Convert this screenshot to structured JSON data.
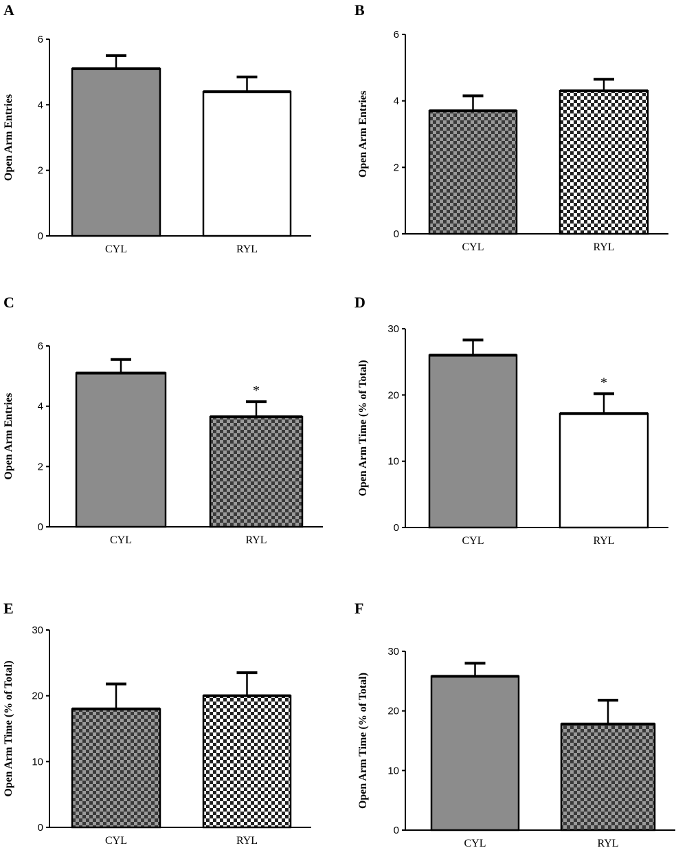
{
  "chart_data": [
    {
      "type": "bar",
      "panel": "A",
      "categories": [
        "CYL",
        "RYL"
      ],
      "values": [
        5.1,
        4.4
      ],
      "errors": [
        0.4,
        0.45
      ],
      "fills": [
        "gray",
        "white"
      ],
      "ylabel": "Open Arm Entries",
      "ylim": [
        0,
        6
      ],
      "yticks": [
        0,
        2,
        4,
        6
      ],
      "annotations": [
        "",
        ""
      ]
    },
    {
      "type": "bar",
      "panel": "B",
      "categories": [
        "CYL",
        "RYL"
      ],
      "values": [
        3.7,
        4.3
      ],
      "errors": [
        0.45,
        0.35
      ],
      "fills": [
        "dark-checker",
        "light-checker"
      ],
      "ylabel": "Open Arm Entries",
      "ylim": [
        0,
        6
      ],
      "yticks": [
        0,
        2,
        4,
        6
      ],
      "annotations": [
        "",
        ""
      ]
    },
    {
      "type": "bar",
      "panel": "C",
      "categories": [
        "CYL",
        "RYL"
      ],
      "values": [
        5.1,
        3.65
      ],
      "errors": [
        0.45,
        0.5
      ],
      "fills": [
        "gray",
        "dark-checker"
      ],
      "ylabel": "Open Arm Entries",
      "ylim": [
        0,
        6
      ],
      "yticks": [
        0,
        2,
        4,
        6
      ],
      "annotations": [
        "",
        "*"
      ]
    },
    {
      "type": "bar",
      "panel": "D",
      "categories": [
        "CYL",
        "RYL"
      ],
      "values": [
        26,
        17.2
      ],
      "errors": [
        2.3,
        3.0
      ],
      "fills": [
        "gray",
        "white"
      ],
      "ylabel": "Open Arm Time (% of Total)",
      "ylim": [
        0,
        30
      ],
      "yticks": [
        0,
        10,
        20,
        30
      ],
      "annotations": [
        "",
        "*"
      ]
    },
    {
      "type": "bar",
      "panel": "E",
      "categories": [
        "CYL",
        "RYL"
      ],
      "values": [
        18,
        20
      ],
      "errors": [
        3.8,
        3.5
      ],
      "fills": [
        "dark-checker",
        "light-checker"
      ],
      "ylabel": "Open Arm Time (% of Total)",
      "ylim": [
        0,
        30
      ],
      "yticks": [
        0,
        10,
        20,
        30
      ],
      "annotations": [
        "",
        ""
      ]
    },
    {
      "type": "bar",
      "panel": "F",
      "categories": [
        "CYL",
        "RYL"
      ],
      "values": [
        25.8,
        17.8
      ],
      "errors": [
        2.2,
        4.0
      ],
      "fills": [
        "gray",
        "dark-checker"
      ],
      "ylabel": "Open Arm Time (% of Total)",
      "ylim": [
        0,
        30
      ],
      "yticks": [
        0,
        10,
        20,
        30
      ],
      "annotations": [
        "",
        ""
      ]
    }
  ],
  "colors": {
    "gray": "#8c8c8c",
    "dark": "#3a3a3a",
    "white": "#ffffff",
    "ink": "#000000"
  }
}
